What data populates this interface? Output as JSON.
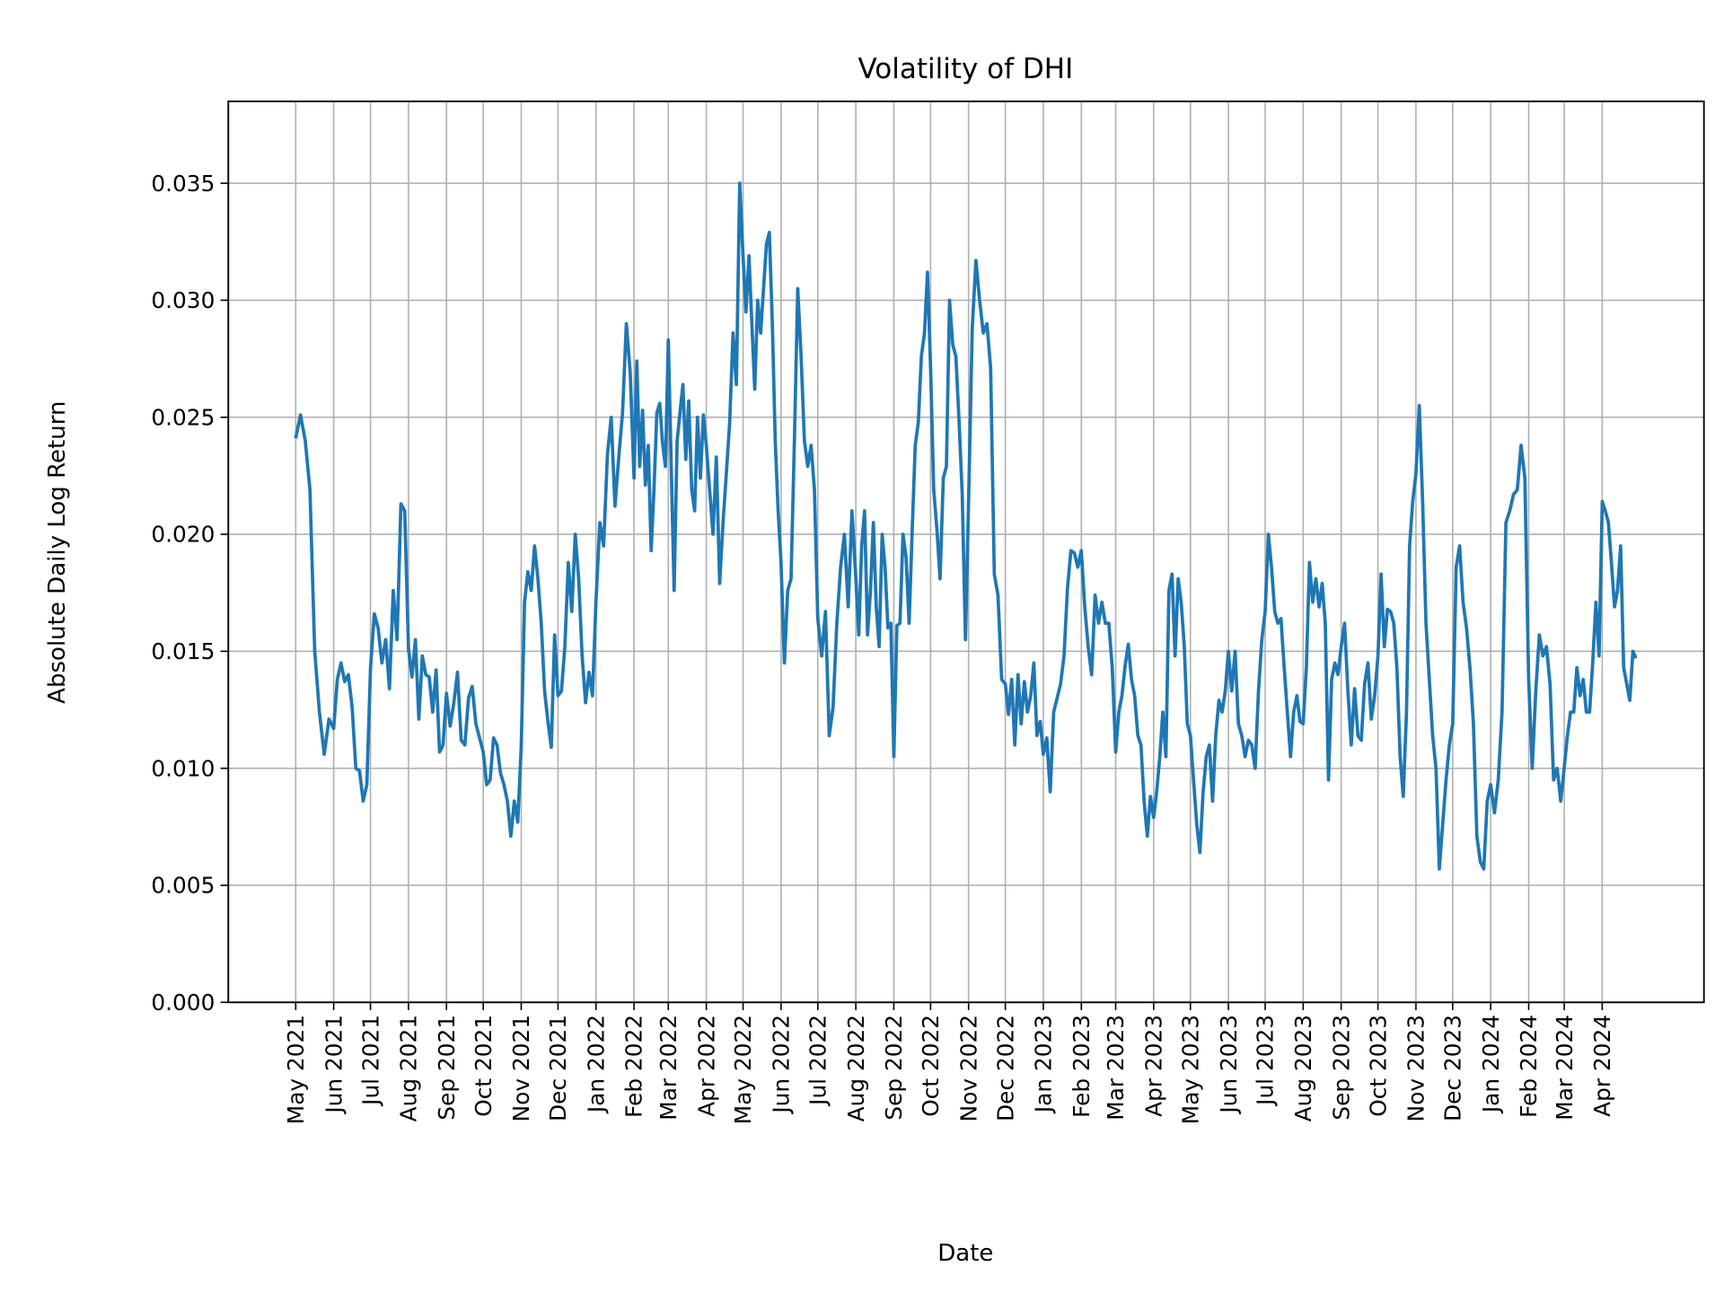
{
  "chart_data": {
    "type": "line",
    "title": "Volatility of DHI",
    "xlabel": "Date",
    "ylabel": "Absolute Daily Log Return",
    "xlim": [
      "2021-03-07",
      "2024-06-23"
    ],
    "ylim": [
      0,
      0.0385
    ],
    "grid": true,
    "line_color": "#1f77b4",
    "grid_color": "#b0b0b0",
    "y_ticks": [
      "0.000",
      "0.005",
      "0.010",
      "0.015",
      "0.020",
      "0.025",
      "0.030",
      "0.035"
    ],
    "x_ticks": [
      "May 2021",
      "Jun 2021",
      "Jul 2021",
      "Aug 2021",
      "Sep 2021",
      "Oct 2021",
      "Nov 2021",
      "Dec 2021",
      "Jan 2022",
      "Feb 2022",
      "Mar 2022",
      "Apr 2022",
      "May 2022",
      "Jun 2022",
      "Jul 2022",
      "Aug 2022",
      "Sep 2022",
      "Oct 2022",
      "Nov 2022",
      "Dec 2022",
      "Jan 2023",
      "Feb 2023",
      "Mar 2023",
      "Apr 2023",
      "May 2023",
      "Jun 2023",
      "Jul 2023",
      "Aug 2023",
      "Sep 2023",
      "Oct 2023",
      "Nov 2023",
      "Dec 2023",
      "Jan 2024",
      "Feb 2024",
      "Mar 2024",
      "Apr 2024"
    ],
    "series": [
      {
        "monthly": [
          {
            "month": "2021-05",
            "values": [
              0.0241,
              0.0251,
              0.024,
              0.0219,
              0.015,
              0.0124,
              0.0106,
              0.0121
            ]
          },
          {
            "month": "2021-06",
            "values": [
              0.0117,
              0.0138,
              0.0145,
              0.0137,
              0.014,
              0.0126,
              0.01,
              0.0099,
              0.0086,
              0.0093
            ]
          },
          {
            "month": "2021-07",
            "values": [
              0.0143,
              0.0166,
              0.016,
              0.0145,
              0.0155,
              0.0134,
              0.0176,
              0.0155,
              0.0213,
              0.021
            ]
          },
          {
            "month": "2021-08",
            "values": [
              0.0151,
              0.0139,
              0.0155,
              0.0121,
              0.0148,
              0.014,
              0.0139,
              0.0124,
              0.0142,
              0.0107,
              0.011
            ]
          },
          {
            "month": "2021-09",
            "values": [
              0.0132,
              0.0118,
              0.0128,
              0.0141,
              0.0112,
              0.011,
              0.013,
              0.0135,
              0.0119,
              0.0113
            ]
          },
          {
            "month": "2021-10",
            "values": [
              0.0107,
              0.0093,
              0.0095,
              0.0113,
              0.011,
              0.0098,
              0.0093,
              0.0086,
              0.0071,
              0.0086,
              0.0077
            ]
          },
          {
            "month": "2021-11",
            "values": [
              0.0109,
              0.0171,
              0.0184,
              0.0176,
              0.0195,
              0.0181,
              0.0162,
              0.0133,
              0.012,
              0.0109,
              0.0157
            ]
          },
          {
            "month": "2021-12",
            "values": [
              0.0131,
              0.0133,
              0.0152,
              0.0188,
              0.0167,
              0.02,
              0.0181,
              0.0148,
              0.0128,
              0.0141,
              0.0131
            ]
          },
          {
            "month": "2022-01",
            "values": [
              0.0171,
              0.0205,
              0.0195,
              0.0234,
              0.025,
              0.0212,
              0.0233,
              0.0252,
              0.029,
              0.0269
            ]
          },
          {
            "month": "2022-02",
            "values": [
              0.0224,
              0.0274,
              0.0229,
              0.0253,
              0.0221,
              0.0238,
              0.0193,
              0.0219,
              0.0252,
              0.0256,
              0.0239,
              0.0229
            ]
          },
          {
            "month": "2022-03",
            "values": [
              0.0283,
              0.0229,
              0.0176,
              0.024,
              0.0252,
              0.0264,
              0.0232,
              0.0257,
              0.0219,
              0.021,
              0.025,
              0.0224,
              0.0251
            ]
          },
          {
            "month": "2022-04",
            "values": [
              0.0238,
              0.0219,
              0.02,
              0.0233,
              0.0179,
              0.0205,
              0.0226,
              0.0248,
              0.0286,
              0.0264,
              0.035
            ]
          },
          {
            "month": "2022-05",
            "values": [
              0.0319,
              0.0295,
              0.0319,
              0.029,
              0.0262,
              0.03,
              0.0286,
              0.0305,
              0.0324,
              0.0329,
              0.029,
              0.024,
              0.021
            ]
          },
          {
            "month": "2022-06",
            "values": [
              0.0188,
              0.0145,
              0.0176,
              0.0181,
              0.024,
              0.0305,
              0.0276,
              0.024,
              0.0229,
              0.0238,
              0.0219
            ]
          },
          {
            "month": "2022-07",
            "values": [
              0.0164,
              0.0148,
              0.0167,
              0.0114,
              0.0126,
              0.0162,
              0.0186,
              0.02,
              0.0169,
              0.021
            ]
          },
          {
            "month": "2022-08",
            "values": [
              0.0181,
              0.0157,
              0.0195,
              0.021,
              0.0157,
              0.0176,
              0.0205,
              0.0169,
              0.0152,
              0.02,
              0.0186,
              0.016,
              0.0162
            ]
          },
          {
            "month": "2022-09",
            "values": [
              0.0105,
              0.0161,
              0.0162,
              0.02,
              0.019,
              0.0162,
              0.0202,
              0.0238,
              0.0248,
              0.0276,
              0.0286,
              0.0312
            ]
          },
          {
            "month": "2022-10",
            "values": [
              0.0271,
              0.0219,
              0.0202,
              0.0181,
              0.0224,
              0.0229,
              0.03,
              0.0281,
              0.0276,
              0.0248,
              0.0217,
              0.0155
            ]
          },
          {
            "month": "2022-11",
            "values": [
              0.0214,
              0.0288,
              0.0317,
              0.03,
              0.0286,
              0.029,
              0.0271,
              0.0183,
              0.0174,
              0.0138
            ]
          },
          {
            "month": "2022-12",
            "values": [
              0.0136,
              0.0123,
              0.0138,
              0.011,
              0.014,
              0.0119,
              0.0137,
              0.0124,
              0.0131,
              0.0145,
              0.0114,
              0.012
            ]
          },
          {
            "month": "2023-01",
            "values": [
              0.0106,
              0.0113,
              0.009,
              0.0124,
              0.013,
              0.0136,
              0.0148,
              0.0177,
              0.0193,
              0.0192,
              0.0186
            ]
          },
          {
            "month": "2023-02",
            "values": [
              0.0193,
              0.0169,
              0.0152,
              0.014,
              0.0174,
              0.0162,
              0.0171,
              0.0162,
              0.0162,
              0.0143
            ]
          },
          {
            "month": "2023-03",
            "values": [
              0.0107,
              0.0124,
              0.0131,
              0.0144,
              0.0153,
              0.0138,
              0.0131,
              0.0114,
              0.011,
              0.0086,
              0.0071,
              0.0088
            ]
          },
          {
            "month": "2023-04",
            "values": [
              0.0079,
              0.009,
              0.0105,
              0.0124,
              0.0105,
              0.0176,
              0.0183,
              0.0148,
              0.0181,
              0.0171,
              0.0152,
              0.0119
            ]
          },
          {
            "month": "2023-05",
            "values": [
              0.0114,
              0.0095,
              0.0076,
              0.0064,
              0.009,
              0.0105,
              0.011,
              0.0086,
              0.0114,
              0.0129,
              0.0124,
              0.0133
            ]
          },
          {
            "month": "2023-06",
            "values": [
              0.015,
              0.0133,
              0.015,
              0.0119,
              0.0114,
              0.0105,
              0.0112,
              0.011,
              0.01,
              0.0133,
              0.0155
            ]
          },
          {
            "month": "2023-07",
            "values": [
              0.0167,
              0.02,
              0.0186,
              0.0167,
              0.0162,
              0.0164,
              0.0143,
              0.0124,
              0.0105,
              0.0124,
              0.0131,
              0.012
            ]
          },
          {
            "month": "2023-08",
            "values": [
              0.0119,
              0.0143,
              0.0188,
              0.0171,
              0.0181,
              0.0169,
              0.0179,
              0.0162,
              0.0095,
              0.0138,
              0.0145,
              0.014
            ]
          },
          {
            "month": "2023-09",
            "values": [
              0.0152,
              0.0162,
              0.0133,
              0.011,
              0.0134,
              0.0114,
              0.0112,
              0.0136,
              0.0145,
              0.0121,
              0.0131
            ]
          },
          {
            "month": "2023-10",
            "values": [
              0.0148,
              0.0183,
              0.0152,
              0.0168,
              0.0167,
              0.0162,
              0.0143,
              0.0105,
              0.0088,
              0.0124,
              0.0195,
              0.0214
            ]
          },
          {
            "month": "2023-11",
            "values": [
              0.0226,
              0.0255,
              0.0214,
              0.0162,
              0.0138,
              0.0114,
              0.01,
              0.0057,
              0.0076,
              0.0095,
              0.011
            ]
          },
          {
            "month": "2023-12",
            "values": [
              0.0119,
              0.0186,
              0.0195,
              0.0171,
              0.016,
              0.0143,
              0.0119,
              0.0071,
              0.006,
              0.0057,
              0.0086
            ]
          },
          {
            "month": "2024-01",
            "values": [
              0.0093,
              0.0081,
              0.0095,
              0.0124,
              0.0205,
              0.021,
              0.0217,
              0.0219,
              0.0238,
              0.0224
            ]
          },
          {
            "month": "2024-02",
            "values": [
              0.0138,
              0.01,
              0.0133,
              0.0157,
              0.0148,
              0.0152,
              0.0136,
              0.0095,
              0.01,
              0.0086
            ]
          },
          {
            "month": "2024-03",
            "values": [
              0.01,
              0.0114,
              0.0124,
              0.0124,
              0.0143,
              0.0131,
              0.0138,
              0.0124,
              0.0124,
              0.0145,
              0.0171,
              0.0148
            ]
          },
          {
            "month": "2024-04",
            "values": [
              0.0214,
              0.021,
              0.0205,
              0.0188,
              0.0169,
              0.0176,
              0.0195,
              0.0143,
              0.0136,
              0.0129,
              0.015,
              0.0147
            ]
          }
        ]
      }
    ]
  }
}
